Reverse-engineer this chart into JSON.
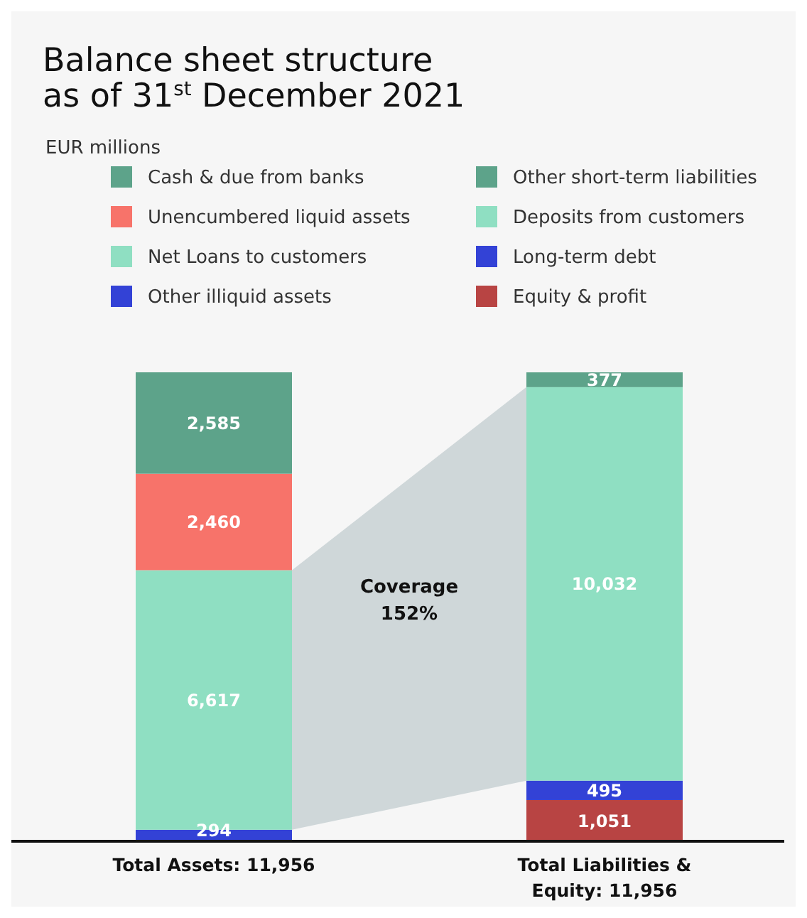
{
  "chart_data": {
    "type": "bar",
    "stacked": true,
    "title": "Balance sheet structure as of 31$^{st}$ December 2021",
    "subtitle": "EUR millions",
    "categories": [
      "Total Assets: 11,956",
      "Total Liabilities & Equity: 11,956"
    ],
    "series": [
      {
        "name": "Other illiquid assets",
        "color": "#3342d6",
        "values": [
          294,
          null
        ],
        "value_labels": [
          "294",
          null
        ]
      },
      {
        "name": "Equity & profit",
        "color": "#b84443",
        "values": [
          null,
          1051
        ],
        "value_labels": [
          null,
          "1,051"
        ]
      },
      {
        "name": "Net Loans to customers",
        "color": "#8fdfc2",
        "values": [
          6617,
          null
        ],
        "value_labels": [
          "6,617",
          null
        ]
      },
      {
        "name": "Long-term debt",
        "color": "#3342d6",
        "values": [
          null,
          495
        ],
        "value_labels": [
          null,
          "495"
        ]
      },
      {
        "name": "Unencumbered liquid assets",
        "color": "#f7736a",
        "values": [
          2460,
          null
        ],
        "value_labels": [
          "2,460",
          null
        ]
      },
      {
        "name": "Deposits from customers",
        "color": "#8fdfc2",
        "values": [
          null,
          10032
        ],
        "value_labels": [
          null,
          "10,032"
        ]
      },
      {
        "name": "Cash & due from banks",
        "color": "#5da38a",
        "values": [
          2585,
          null
        ],
        "value_labels": [
          "2,585",
          null
        ]
      },
      {
        "name": "Other short-term liabilities",
        "color": "#5da38a",
        "values": [
          null,
          377
        ],
        "value_labels": [
          null,
          "377"
        ]
      }
    ],
    "annotations": [
      "Coverage 152%"
    ],
    "legend": "top"
  }
}
